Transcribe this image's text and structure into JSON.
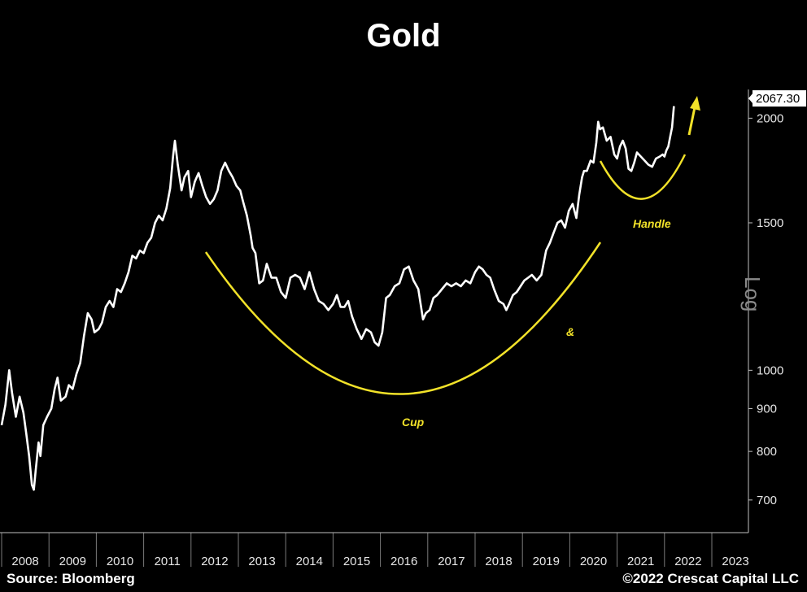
{
  "chart_data": {
    "type": "line",
    "title": "Gold",
    "yscale": "log",
    "ylabel": "Log",
    "ylim": [
      650,
      2150
    ],
    "yticks": [
      700,
      800,
      900,
      1000,
      1500,
      2000
    ],
    "xticks": [
      "2008",
      "2009",
      "2010",
      "2011",
      "2012",
      "2013",
      "2014",
      "2015",
      "2016",
      "2017",
      "2018",
      "2019",
      "2020",
      "2021",
      "2022",
      "2023"
    ],
    "xlim": [
      2008.0,
      2023.45
    ],
    "last_value_label": "2067.30",
    "series": [
      {
        "x": [
          2008.0,
          2008.08,
          2008.16,
          2008.22,
          2008.3,
          2008.38,
          2008.46,
          2008.52,
          2008.58,
          2008.64,
          2008.68,
          2008.72,
          2008.78,
          2008.82,
          2008.88,
          2008.96,
          2009.05,
          2009.12,
          2009.18,
          2009.25,
          2009.35,
          2009.42,
          2009.5,
          2009.58,
          2009.66,
          2009.74,
          2009.82,
          2009.9,
          2009.96,
          2010.05,
          2010.12,
          2010.2,
          2010.28,
          2010.36,
          2010.44,
          2010.52,
          2010.6,
          2010.68,
          2010.76,
          2010.84,
          2010.92,
          2011.0,
          2011.08,
          2011.16,
          2011.24,
          2011.32,
          2011.4,
          2011.48,
          2011.56,
          2011.62,
          2011.66,
          2011.72,
          2011.8,
          2011.86,
          2011.94,
          2012.0,
          2012.08,
          2012.16,
          2012.24,
          2012.32,
          2012.4,
          2012.48,
          2012.56,
          2012.64,
          2012.72,
          2012.8,
          2012.88,
          2012.96,
          2013.04,
          2013.1,
          2013.18,
          2013.26,
          2013.3,
          2013.36,
          2013.44,
          2013.52,
          2013.6,
          2013.7,
          2013.8,
          2013.9,
          2014.0,
          2014.1,
          2014.2,
          2014.3,
          2014.4,
          2014.5,
          2014.6,
          2014.7,
          2014.8,
          2014.9,
          2015.0,
          2015.08,
          2015.16,
          2015.24,
          2015.32,
          2015.4,
          2015.5,
          2015.6,
          2015.7,
          2015.8,
          2015.88,
          2015.96,
          2016.04,
          2016.12,
          2016.2,
          2016.3,
          2016.4,
          2016.5,
          2016.6,
          2016.7,
          2016.8,
          2016.9,
          2016.96,
          2017.04,
          2017.12,
          2017.2,
          2017.3,
          2017.4,
          2017.5,
          2017.6,
          2017.7,
          2017.8,
          2017.9,
          2018.0,
          2018.08,
          2018.16,
          2018.24,
          2018.32,
          2018.4,
          2018.5,
          2018.6,
          2018.66,
          2018.72,
          2018.8,
          2018.88,
          2018.96,
          2019.04,
          2019.12,
          2019.2,
          2019.3,
          2019.4,
          2019.5,
          2019.58,
          2019.66,
          2019.74,
          2019.82,
          2019.9,
          2019.98,
          2020.06,
          2020.14,
          2020.2,
          2020.26,
          2020.3,
          2020.36,
          2020.44,
          2020.5,
          2020.56,
          2020.6,
          2020.64,
          2020.7,
          2020.78,
          2020.86,
          2020.94,
          2021.0,
          2021.06,
          2021.12,
          2021.18,
          2021.24,
          2021.3,
          2021.36,
          2021.42,
          2021.5,
          2021.58,
          2021.66,
          2021.74,
          2021.82,
          2021.9,
          2021.96,
          2022.0,
          2022.04,
          2022.08,
          2022.12,
          2022.16,
          2022.2
        ],
        "y": [
          860,
          910,
          1000,
          940,
          880,
          930,
          890,
          840,
          790,
          730,
          720,
          760,
          820,
          790,
          860,
          880,
          900,
          950,
          980,
          920,
          930,
          960,
          950,
          990,
          1020,
          1100,
          1170,
          1150,
          1110,
          1120,
          1140,
          1190,
          1210,
          1190,
          1250,
          1240,
          1270,
          1310,
          1370,
          1360,
          1390,
          1380,
          1420,
          1440,
          1500,
          1530,
          1510,
          1560,
          1650,
          1800,
          1880,
          1760,
          1640,
          1700,
          1730,
          1610,
          1680,
          1720,
          1660,
          1610,
          1580,
          1600,
          1640,
          1730,
          1770,
          1730,
          1700,
          1660,
          1640,
          1590,
          1530,
          1450,
          1400,
          1380,
          1270,
          1280,
          1340,
          1290,
          1290,
          1240,
          1220,
          1290,
          1300,
          1290,
          1250,
          1310,
          1250,
          1210,
          1200,
          1180,
          1200,
          1230,
          1190,
          1190,
          1210,
          1160,
          1120,
          1090,
          1120,
          1110,
          1080,
          1070,
          1110,
          1220,
          1230,
          1260,
          1270,
          1320,
          1330,
          1280,
          1250,
          1150,
          1170,
          1180,
          1220,
          1230,
          1250,
          1270,
          1260,
          1270,
          1260,
          1280,
          1270,
          1310,
          1330,
          1320,
          1300,
          1290,
          1250,
          1210,
          1200,
          1180,
          1200,
          1230,
          1240,
          1260,
          1280,
          1290,
          1300,
          1280,
          1300,
          1390,
          1420,
          1460,
          1500,
          1510,
          1480,
          1550,
          1580,
          1520,
          1620,
          1700,
          1730,
          1730,
          1780,
          1770,
          1870,
          1980,
          1940,
          1950,
          1880,
          1900,
          1810,
          1790,
          1850,
          1880,
          1840,
          1740,
          1730,
          1770,
          1820,
          1800,
          1780,
          1760,
          1750,
          1790,
          1800,
          1810,
          1800,
          1830,
          1850,
          1900,
          1950,
          2067.3
        ]
      }
    ],
    "annotations": {
      "cup": "Cup",
      "amp": "&",
      "handle": "Handle"
    },
    "colors": {
      "background": "#000000",
      "line": "#ffffff",
      "annotation": "#f2e229"
    }
  },
  "footer": {
    "source": "Source: Bloomberg",
    "copyright": "©2022 Crescat Capital LLC"
  }
}
